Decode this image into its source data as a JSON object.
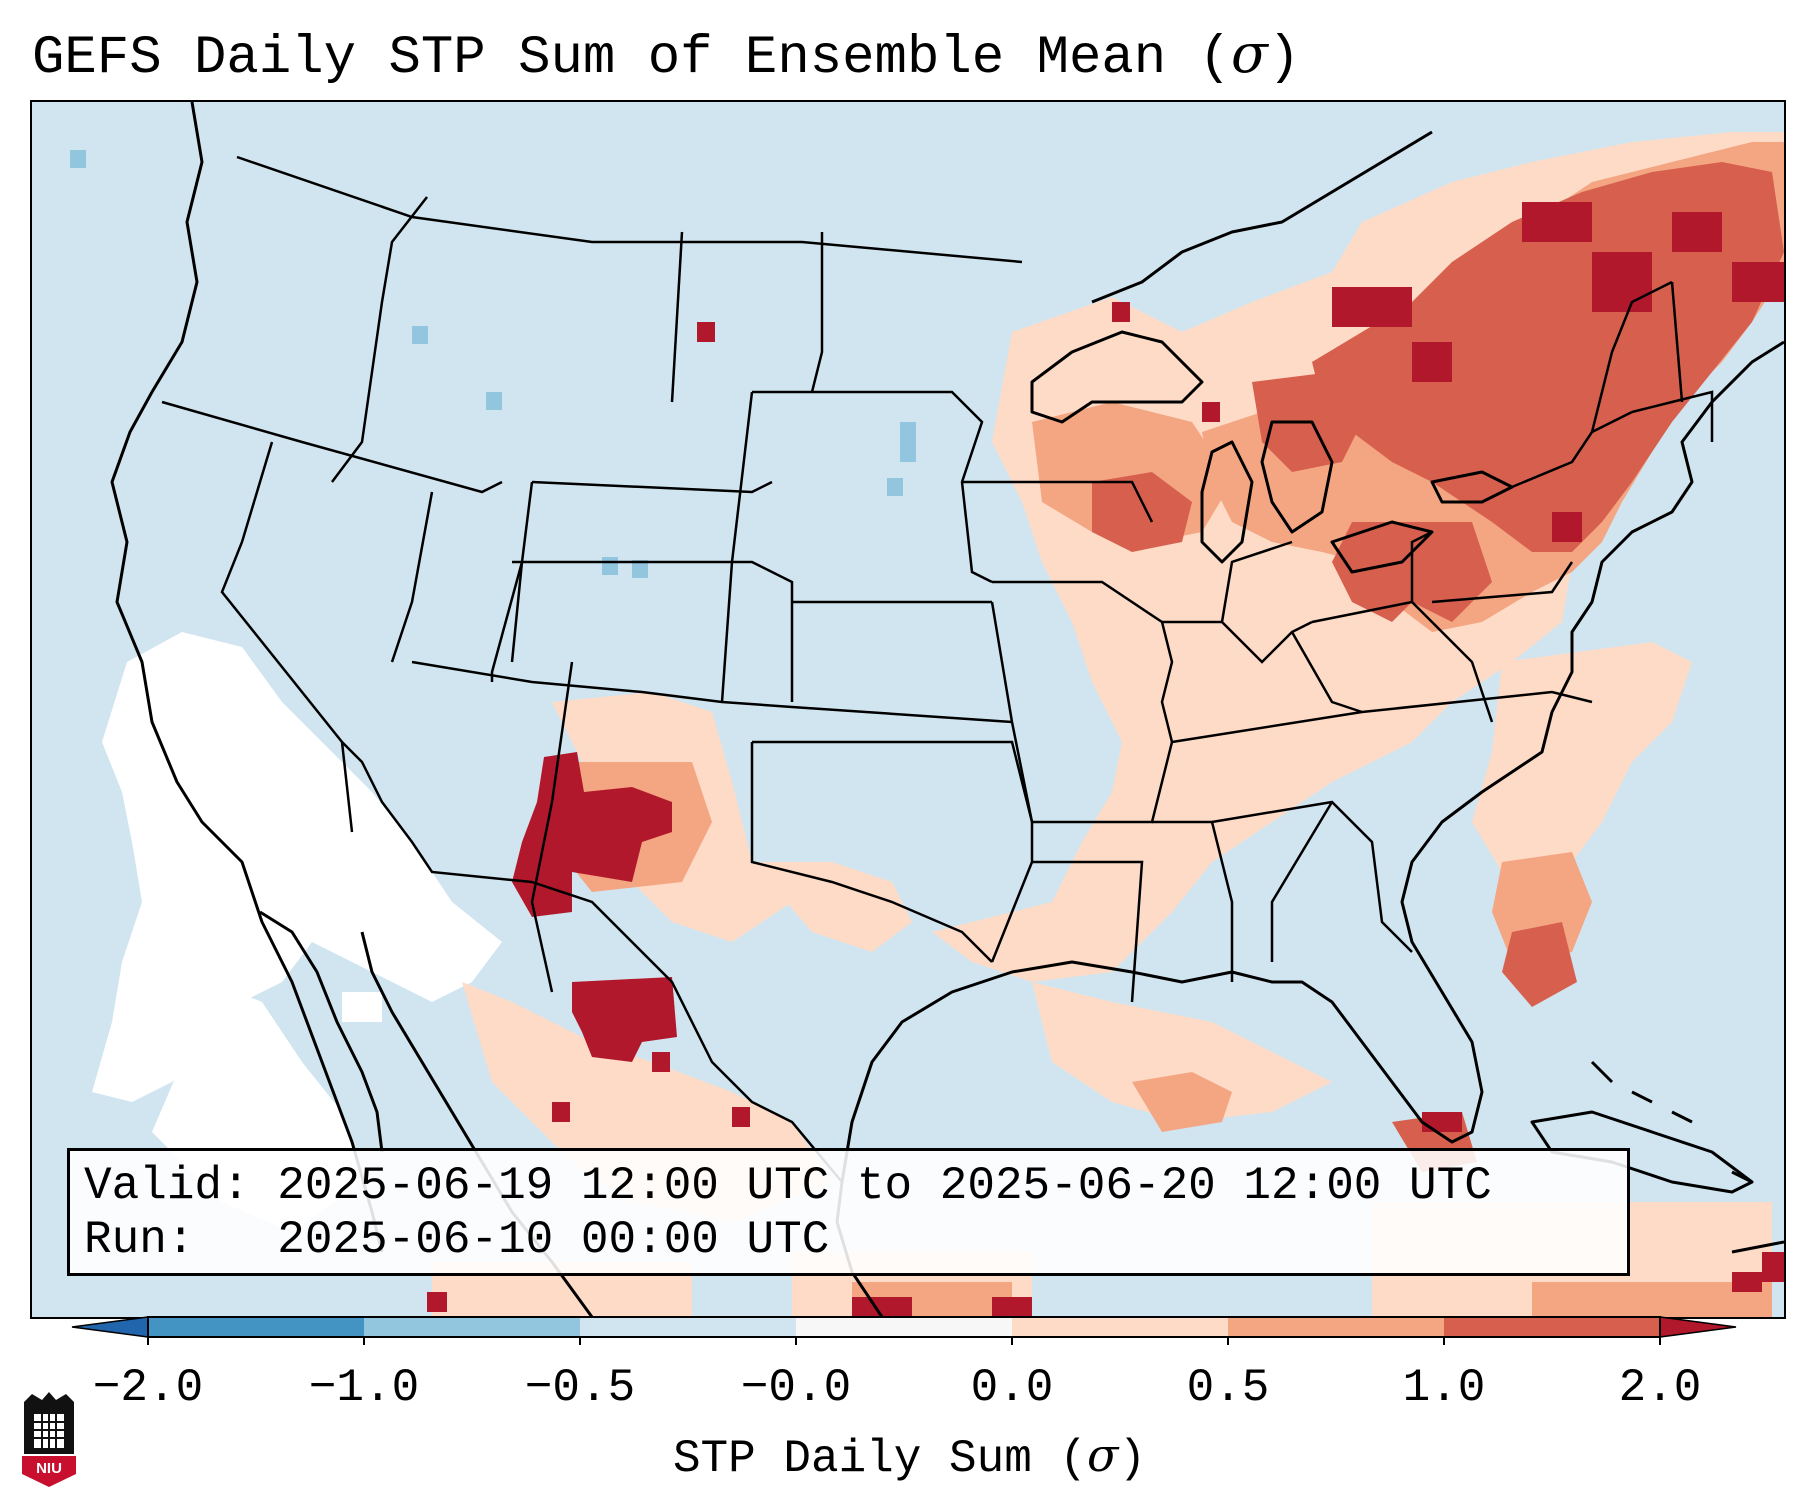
{
  "title": {
    "text": "GEFS Daily STP Sum of Ensemble Mean (",
    "symbol": "σ",
    "close": ")"
  },
  "info": {
    "valid_line": "Valid: 2025-06-19 12:00 UTC to 2025-06-20 12:00 UTC",
    "run_line": "Run:   2025-06-10 00:00 UTC"
  },
  "colorbar": {
    "ticks": [
      "−2.0",
      "−1.0",
      "−0.5",
      "−0.0",
      "0.0",
      "0.5",
      "1.0",
      "2.0"
    ],
    "bins": [
      {
        "from": -2.0,
        "to": -1.0,
        "color": "#4393c3"
      },
      {
        "from": -1.0,
        "to": -0.5,
        "color": "#92c5de"
      },
      {
        "from": -0.5,
        "to": -0.0,
        "color": "#d1e5f0"
      },
      {
        "from": -0.0,
        "to": 0.0,
        "color": "#f7f7f7"
      },
      {
        "from": 0.0,
        "to": 0.5,
        "color": "#fddbc7"
      },
      {
        "from": 0.5,
        "to": 1.0,
        "color": "#f4a582"
      },
      {
        "from": 1.0,
        "to": 2.0,
        "color": "#d6604d"
      }
    ],
    "under_color": "#2166ac",
    "over_color": "#b2182b",
    "label": "STP Daily Sum (",
    "label_symbol": "σ",
    "label_close": ")"
  },
  "logo": {
    "text": "NIU"
  },
  "colors": {
    "background_value": "#d1e5f0",
    "neutral": "#ffffff",
    "weak_positive": "#fddbc7",
    "moderate_positive": "#f4a582",
    "strong_positive": "#d6604d",
    "extreme_positive": "#b2182b",
    "weak_negative": "#92c5de"
  }
}
